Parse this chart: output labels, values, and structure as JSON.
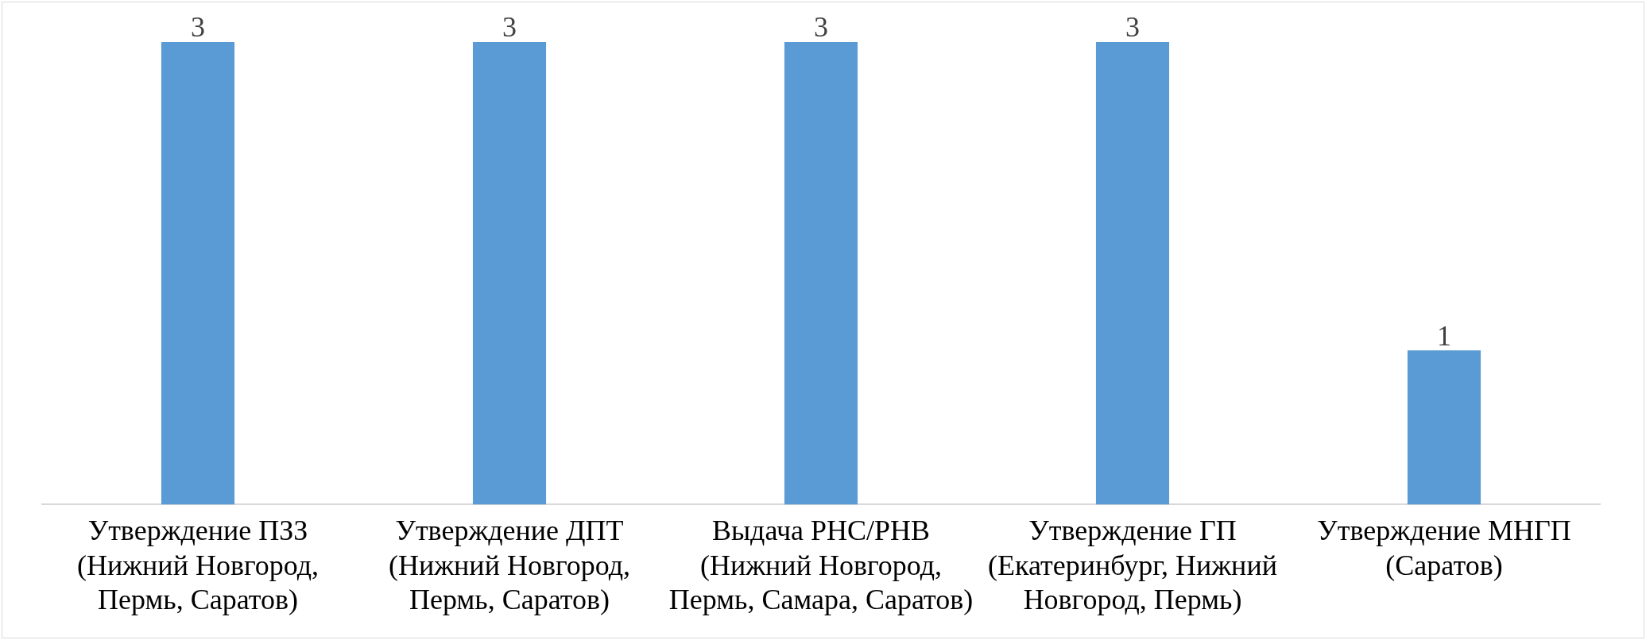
{
  "chart_data": {
    "type": "bar",
    "categories": [
      "Утверждение ПЗЗ (Нижний Новгород, Пермь, Саратов)",
      "Утверждение ДПТ (Нижний Новгород, Пермь, Саратов)",
      "Выдача РНС/РНВ (Нижний Новгород, Пермь, Самара, Саратов)",
      "Утверждение ГП (Екатеринбург, Нижний Новгород, Пермь)",
      "Утверждение МНГП (Саратов)"
    ],
    "values": [
      3,
      3,
      3,
      3,
      1
    ],
    "color": "#5b9bd5",
    "data_labels": true,
    "grid": false,
    "legend": false
  }
}
